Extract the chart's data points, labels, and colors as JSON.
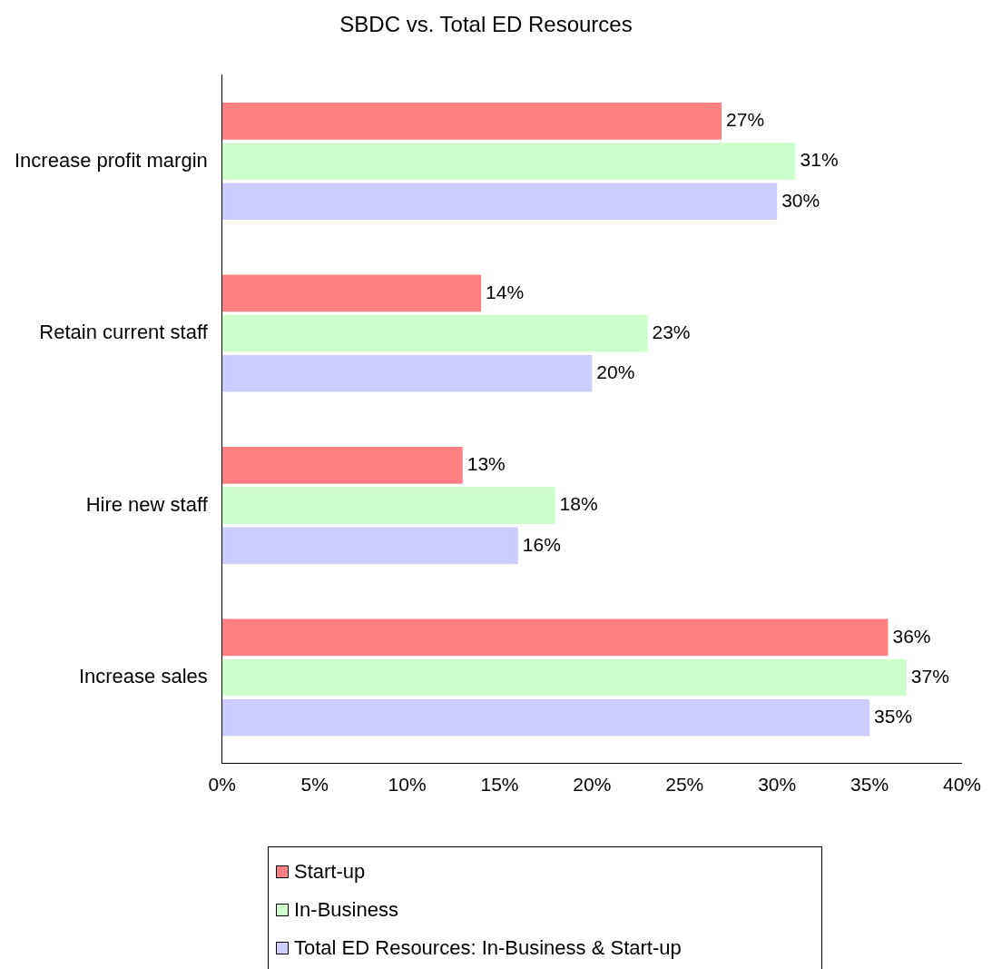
{
  "chart_data": {
    "type": "bar",
    "orientation": "horizontal",
    "title": "SBDC vs. Total ED Resources",
    "categories": [
      "Increase profit margin",
      "Retain current staff",
      "Hire new staff",
      "Increase sales"
    ],
    "series": [
      {
        "name": "Start-up",
        "color": "#ff8080",
        "values": [
          27,
          14,
          13,
          36
        ],
        "value_labels": [
          "27%",
          "14%",
          "13%",
          "36%"
        ]
      },
      {
        "name": "In-Business",
        "color": "#ccffcc",
        "values": [
          31,
          23,
          18,
          37
        ],
        "value_labels": [
          "31%",
          "23%",
          "18%",
          "37%"
        ]
      },
      {
        "name": "Total ED Resources: In-Business & Start-up",
        "color": "#ccccff",
        "values": [
          30,
          20,
          16,
          35
        ],
        "value_labels": [
          "30%",
          "20%",
          "16%",
          "35%"
        ]
      }
    ],
    "xlim": [
      0,
      40
    ],
    "xticks": [
      {
        "value": 0,
        "label": "0%"
      },
      {
        "value": 5,
        "label": "5%"
      },
      {
        "value": 10,
        "label": "10%"
      },
      {
        "value": 15,
        "label": "15%"
      },
      {
        "value": 20,
        "label": "20%"
      },
      {
        "value": 25,
        "label": "25%"
      },
      {
        "value": 30,
        "label": "30%"
      },
      {
        "value": 35,
        "label": "35%"
      },
      {
        "value": 40,
        "label": "40%"
      }
    ],
    "grid": false,
    "legend": "bottom"
  }
}
